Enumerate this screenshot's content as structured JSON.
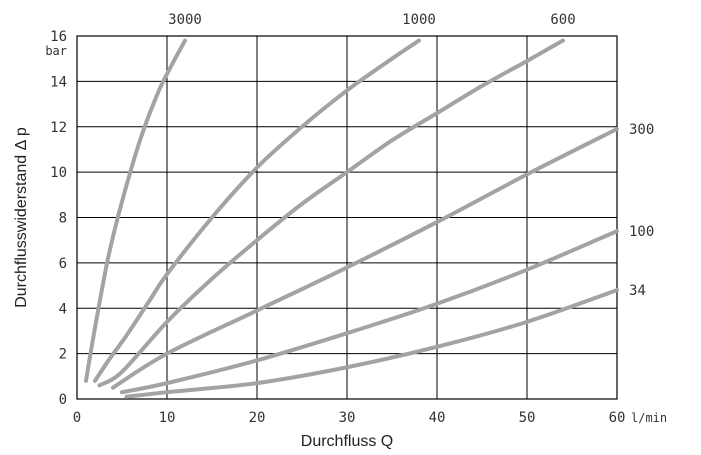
{
  "chart_data": {
    "type": "line",
    "xlabel": "Durchfluss Q",
    "ylabel": "Durchflusswiderstand Δ p",
    "x_unit": "l/min",
    "y_unit": "bar",
    "xlim": [
      0,
      60
    ],
    "ylim": [
      0,
      16
    ],
    "x_ticks": [
      "0",
      "10",
      "20",
      "30",
      "40",
      "50",
      "60"
    ],
    "y_ticks": [
      "0",
      "2",
      "4",
      "6",
      "8",
      "10",
      "12",
      "14",
      "16"
    ],
    "grid": true,
    "line_color": "#a3a3a3",
    "series": [
      {
        "name": "3000",
        "x": [
          1,
          1.5,
          2.3,
          3.5,
          5,
          7,
          9,
          10.5,
          12
        ],
        "y": [
          0.8,
          2.0,
          3.8,
          6.3,
          8.7,
          11.4,
          13.5,
          14.7,
          15.8
        ]
      },
      {
        "name": "1000",
        "x": [
          2,
          3.5,
          5.5,
          8,
          10,
          15,
          20,
          25,
          30,
          35,
          38
        ],
        "y": [
          0.8,
          1.7,
          2.8,
          4.3,
          5.5,
          8.0,
          10.2,
          12.0,
          13.6,
          15.0,
          15.8
        ]
      },
      {
        "name": "600",
        "x": [
          2.5,
          5,
          10,
          15,
          20,
          25,
          30,
          35,
          40,
          45,
          50,
          54
        ],
        "y": [
          0.6,
          1.2,
          3.4,
          5.3,
          7.0,
          8.6,
          10.0,
          11.4,
          12.6,
          13.8,
          14.9,
          15.8
        ]
      },
      {
        "name": "300",
        "x": [
          4,
          10,
          20,
          30,
          40,
          50,
          60
        ],
        "y": [
          0.5,
          2.0,
          3.9,
          5.8,
          7.8,
          9.9,
          11.9
        ]
      },
      {
        "name": "100",
        "x": [
          5,
          10,
          20,
          30,
          40,
          50,
          60
        ],
        "y": [
          0.3,
          0.7,
          1.7,
          2.9,
          4.2,
          5.7,
          7.4
        ]
      },
      {
        "name": "34",
        "x": [
          5.5,
          10,
          20,
          30,
          40,
          50,
          60
        ],
        "y": [
          0.1,
          0.3,
          0.7,
          1.4,
          2.3,
          3.4,
          4.8
        ]
      }
    ]
  }
}
